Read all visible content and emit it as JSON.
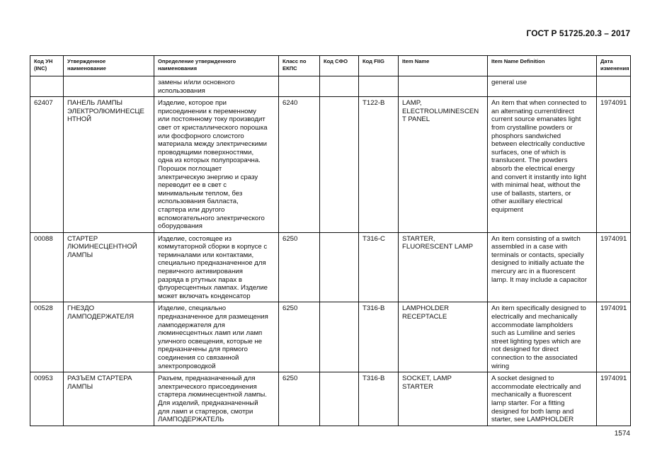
{
  "header": {
    "doc_code": "ГОСТ Р 51725.20.3 – 2017"
  },
  "footer": {
    "page_number": "1574"
  },
  "table": {
    "columns": [
      "Код УН\n(INC)",
      "Утвержденное\nнаименование",
      "Определение утвержденного\nнаименования",
      "Класс по\nЕКПС",
      "Код СФО",
      "Код FIIG",
      "Item Name",
      "Item Name Definition",
      "Дата\nизменения"
    ],
    "rows": [
      [
        "",
        "",
        "замены и/или основного\nиспользования",
        "",
        "",
        "",
        "",
        "general use",
        ""
      ],
      [
        "62407",
        "ПАНЕЛЬ ЛАМПЫ\nЭЛЕКТРОЛЮМИНЕСЦЕ\nНТНОЙ",
        "Изделие, которое при\nприсоединении к переменному\nили постоянному току производит\nсвет от кристаллического порошка\nили фосфорного слоистого\nматериала между электрическими\nпроводящими поверхностями,\nодна из которых полупрозрачна.\nПорошок поглощает\nэлектрическую энергию и сразу\nпереводит ее в свет с\nминимальным теплом, без\nиспользования балласта,\nстартера или другого\nвспомогательного электрического\nоборудования",
        "6240",
        "",
        "T122-B",
        "LAMP,\nELECTROLUMINESCEN\nT PANEL",
        "An item that when connected to\nan alternating current/direct\ncurrent source emanates light\nfrom crystalline powders or\nphosphors sandwiched\nbetween electrically conductive\nsurfaces, one of which is\ntranslucent. The powders\nabsorb the electrical energy\nand convert it instantly into light\nwith minimal heat, without the\nuse of ballasts, starters, or\nother auxillary electrical\nequipment",
        "1974091"
      ],
      [
        "00088",
        "СТАРТЕР\nЛЮМИНЕСЦЕНТНОЙ\nЛАМПЫ",
        "Изделие, состоящее из\nкоммутаторной сборки в корпусе с\nтерминалами или контактами,\nспециально предназначенное для\nпервичного активирования\nразряда в ртутных парах в\nфлуоресцентных лампах. Изделие\nможет включать конденсатор",
        "6250",
        "",
        "T316-C",
        "STARTER,\nFLUORESCENT LAMP",
        "An item consisting of a switch\nassembled in a case with\nterminals or contacts, specially\ndesigned to initially actuate the\nmercury arc in a fluorescent\nlamp. It may include a capacitor",
        "1974091"
      ],
      [
        "00528",
        "ГНЕЗДО\nЛАМПОДЕРЖАТЕЛЯ",
        "Изделие, специально\nпредназначенное для размещения\nламподержателя для\nлюминесцентных ламп или ламп\nуличного освещения, которые не\nпредназначены для прямого\nсоединения со связанной\nэлектропроводкой",
        "6250",
        "",
        "T316-B",
        "LAMPHOLDER\nRECEPTACLE",
        "An item specifically designed to\nelectrically and mechanically\naccommodate lampholders\nsuch as Lumiline and series\nstreet lighting types which are\nnot designed for direct\nconnection to the associated\nwiring",
        "1974091"
      ],
      [
        "00953",
        "РАЗЪЕМ СТАРТЕРА\nЛАМПЫ",
        "Разъем, предназначенный для\nэлектрического присоединения\nстартера люминесцентной лампы.\nДля изделий, предназначенный\nдля ламп и стартеров, смотри\nЛАМПОДЕРЖАТЕЛЬ",
        "6250",
        "",
        "T316-B",
        "SOCKET, LAMP\nSTARTER",
        "A socket designed to\naccommodate electrically and\nmechanically a fluorescent\nlamp starter. For a fitting\ndesigned for both lamp and\nstarter, see LAMPHOLDER",
        "1974091"
      ]
    ]
  }
}
